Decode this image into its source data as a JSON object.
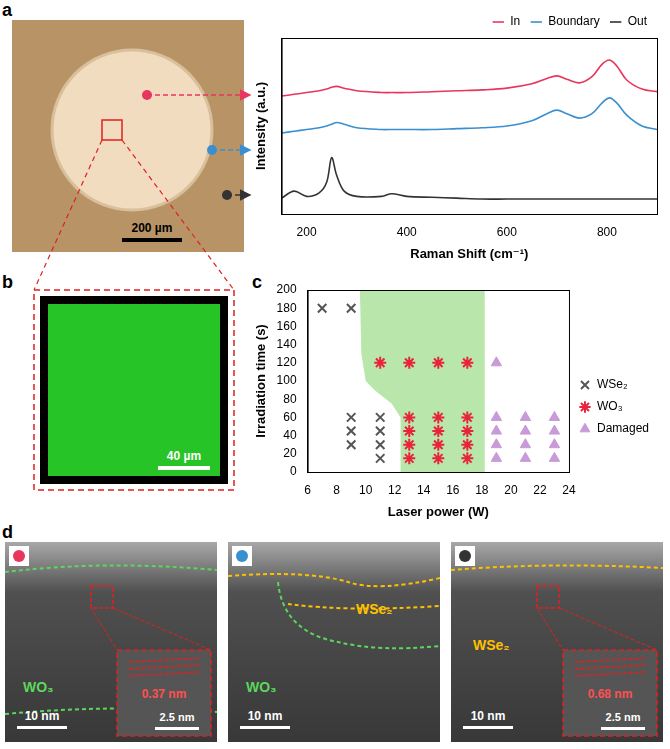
{
  "chart_data": [
    {
      "type": "line",
      "x_label": "Raman Shift (cm⁻¹)",
      "y_label": "Intensity (a.u.)",
      "x": [
        150,
        175,
        200,
        225,
        240,
        250,
        260,
        275,
        300,
        350,
        370,
        400,
        450,
        500,
        550,
        600,
        650,
        680,
        700,
        720,
        745,
        770,
        790,
        805,
        820,
        840,
        870,
        900
      ],
      "series": [
        {
          "name": "In",
          "color": "#e8365d",
          "values": [
            6.7,
            6.8,
            6.9,
            7.0,
            7.1,
            7.2,
            7.25,
            7.15,
            7.0,
            6.9,
            6.9,
            6.9,
            6.95,
            7.0,
            7.05,
            7.15,
            7.4,
            7.7,
            7.85,
            7.65,
            7.45,
            7.8,
            8.5,
            8.75,
            8.4,
            7.6,
            7.1,
            6.95
          ]
        },
        {
          "name": "Boundary",
          "color": "#3a8fd0",
          "values": [
            4.6,
            4.7,
            4.8,
            4.9,
            5.0,
            5.1,
            5.2,
            5.1,
            4.9,
            4.8,
            4.8,
            4.8,
            4.8,
            4.85,
            4.9,
            5.0,
            5.3,
            5.7,
            5.9,
            5.7,
            5.45,
            5.7,
            6.3,
            6.6,
            6.3,
            5.6,
            5.0,
            4.8
          ]
        },
        {
          "name": "Out",
          "color": "#333333",
          "values": [
            0.9,
            1.3,
            1.0,
            1.2,
            1.8,
            3.2,
            2.2,
            1.3,
            1.0,
            1.0,
            1.15,
            1.0,
            0.95,
            0.9,
            0.85,
            0.85,
            0.85,
            0.85,
            0.85,
            0.85,
            0.85,
            0.85,
            0.85,
            0.85,
            0.85,
            0.85,
            0.85,
            0.85
          ]
        }
      ],
      "xlim": [
        150,
        900
      ],
      "xticks": [
        200,
        400,
        600,
        800
      ],
      "ylim": [
        0,
        10
      ],
      "tick_labels": "x",
      "grid": false,
      "legend": "top-right"
    },
    {
      "type": "scatter",
      "x_label": "Laser power (W)",
      "y_label": "Irradiation time (s)",
      "series": [
        {
          "name": "WSe₂",
          "color": "#555555",
          "marker": "x",
          "x": [
            7,
            9,
            9,
            9,
            9,
            11,
            11,
            11,
            11
          ],
          "values": [
            180,
            180,
            60,
            45,
            30,
            60,
            45,
            30,
            15
          ]
        },
        {
          "name": "WO₃",
          "color": "#e8243c",
          "marker": "star",
          "x": [
            11,
            13,
            15,
            17,
            13,
            13,
            13,
            13,
            15,
            15,
            15,
            15,
            17,
            17,
            17,
            17
          ],
          "values": [
            120,
            120,
            120,
            120,
            60,
            45,
            30,
            15,
            60,
            45,
            30,
            15,
            60,
            45,
            30,
            15
          ]
        },
        {
          "name": "Damaged",
          "color": "#c89ad8",
          "marker": "triangle",
          "x": [
            19,
            19,
            19,
            19,
            19,
            21,
            21,
            21,
            21,
            23,
            23,
            23,
            23
          ],
          "values": [
            120,
            60,
            45,
            30,
            15,
            60,
            45,
            30,
            15,
            60,
            45,
            30,
            15
          ]
        }
      ],
      "shaded_region": {
        "color": "#b9e6aa",
        "x": [
          12.4,
          12.4,
          11.8,
          10.6,
          10.0,
          9.7,
          9.6,
          18.2,
          18.2
        ],
        "y": [
          0,
          60,
          75,
          90,
          100,
          130,
          200,
          200,
          0
        ]
      },
      "xlim": [
        6,
        24
      ],
      "xticks": [
        6,
        8,
        10,
        12,
        14,
        16,
        18,
        20,
        22,
        24
      ],
      "ylim": [
        0,
        200
      ],
      "yticks": [
        0,
        20,
        40,
        60,
        80,
        100,
        120,
        140,
        160,
        180,
        200
      ],
      "grid": false,
      "legend": "right"
    }
  ],
  "panels": {
    "a": {
      "letter": "a",
      "scale_bar": "200 µm"
    },
    "b": {
      "letter": "b",
      "scale_bar": "40 µm",
      "color": "#27c427"
    },
    "c": {
      "letter": "c"
    },
    "d": {
      "letter": "d",
      "images": [
        {
          "labels": [
            {
              "text": "WO₃",
              "color": "#5cd65c"
            }
          ],
          "scale_bar": "10 nm",
          "inset": {
            "scale_bar": "2.5 nm",
            "spacing": "0.37 nm"
          }
        },
        {
          "labels": [
            {
              "text": "WO₃",
              "color": "#5cd65c"
            },
            {
              "text": "WSe₂",
              "color": "#ffc000"
            }
          ],
          "scale_bar": "10 nm"
        },
        {
          "labels": [
            {
              "text": "WSe₂",
              "color": "#ffc000"
            }
          ],
          "scale_bar": "10 nm",
          "inset": {
            "scale_bar": "2.5 nm",
            "spacing": "0.68 nm"
          }
        }
      ]
    }
  }
}
